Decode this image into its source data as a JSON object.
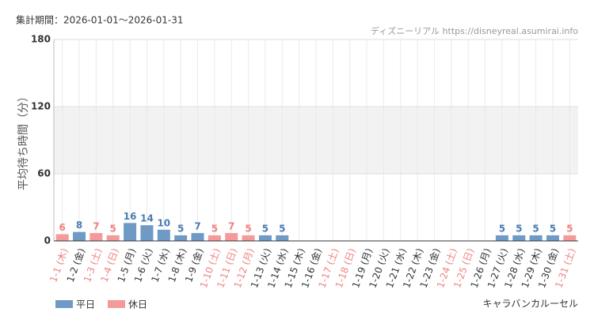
{
  "chart_data": {
    "type": "bar",
    "title": "集計期間：2026-01-01～2026-01-31",
    "source": "ディズニーリアル https://disneyreal.asumirai.info",
    "y_label": "平均待ち時間（分）",
    "attraction": "キャラバンカルーセル",
    "categories": [
      "1-1 (木)",
      "1-2 (金)",
      "1-3 (土)",
      "1-4 (日)",
      "1-5 (月)",
      "1-6 (火)",
      "1-7 (水)",
      "1-8 (木)",
      "1-9 (金)",
      "1-10 (土)",
      "1-11 (日)",
      "1-12 (月)",
      "1-13 (火)",
      "1-14 (水)",
      "1-15 (木)",
      "1-16 (金)",
      "1-17 (土)",
      "1-18 (日)",
      "1-19 (月)",
      "1-20 (火)",
      "1-21 (水)",
      "1-22 (木)",
      "1-23 (金)",
      "1-24 (土)",
      "1-25 (日)",
      "1-26 (月)",
      "1-27 (火)",
      "1-28 (水)",
      "1-29 (木)",
      "1-30 (金)",
      "1-31 (土)"
    ],
    "category_colors": [
      "#f08080",
      "#333333",
      "#f08080",
      "#f08080",
      "#333333",
      "#333333",
      "#333333",
      "#333333",
      "#333333",
      "#f08080",
      "#f08080",
      "#f08080",
      "#333333",
      "#333333",
      "#333333",
      "#333333",
      "#f08080",
      "#f08080",
      "#333333",
      "#333333",
      "#333333",
      "#333333",
      "#333333",
      "#f08080",
      "#f08080",
      "#333333",
      "#333333",
      "#333333",
      "#333333",
      "#333333",
      "#f08080"
    ],
    "series": [
      {
        "name": "平日",
        "color": "#6f9ac6",
        "label_color": "#4a7db3",
        "values": [
          null,
          8,
          null,
          null,
          16,
          14,
          10,
          5,
          7,
          null,
          null,
          null,
          5,
          5,
          null,
          null,
          null,
          null,
          null,
          null,
          null,
          null,
          null,
          null,
          null,
          null,
          5,
          5,
          5,
          5,
          null
        ]
      },
      {
        "name": "休日",
        "color": "#f59a9a",
        "label_color": "#f08080",
        "values": [
          6,
          null,
          7,
          5,
          null,
          null,
          null,
          null,
          null,
          5,
          7,
          5,
          null,
          null,
          null,
          null,
          null,
          null,
          null,
          null,
          null,
          null,
          null,
          null,
          null,
          null,
          null,
          null,
          null,
          null,
          5
        ]
      }
    ],
    "ylim": [
      0,
      180
    ],
    "yticks": [
      0,
      60,
      120,
      180
    ],
    "shaded_band": [
      60,
      120
    ],
    "grid": true
  }
}
